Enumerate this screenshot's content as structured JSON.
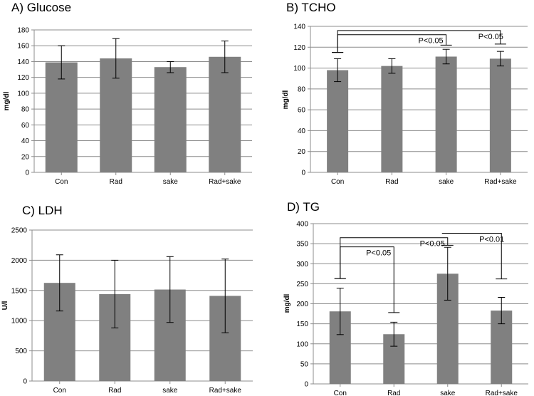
{
  "figure": "Four-panel bar chart figure",
  "chart_data": [
    {
      "type": "bar",
      "title": "A)  Glucose",
      "ylabel": "mg/dl",
      "categories": [
        "Con",
        "Rad",
        "sake",
        "Rad+sake"
      ],
      "values": [
        139,
        144,
        133,
        146
      ],
      "errors": [
        21,
        25,
        7,
        20
      ],
      "ylim": [
        0,
        180
      ],
      "yticks": [
        0,
        20,
        40,
        60,
        80,
        100,
        120,
        140,
        160,
        180
      ],
      "bar_color": "#808080",
      "grid": true,
      "annotations": []
    },
    {
      "type": "bar",
      "title": "B)   TCHO",
      "ylabel": "mg/dl",
      "categories": [
        "Con",
        "Rad",
        "sake",
        "Rad+sake"
      ],
      "values": [
        98,
        102,
        111,
        109
      ],
      "errors": [
        11,
        7,
        7,
        7
      ],
      "ylim": [
        0,
        140
      ],
      "yticks": [
        0,
        20,
        40,
        60,
        80,
        100,
        120,
        140
      ],
      "bar_color": "#808080",
      "grid": true,
      "annotations": [
        {
          "from": 0,
          "to": 2,
          "level": 132,
          "from_y": 115,
          "to_y": 122,
          "label": "P<0.05"
        },
        {
          "from": 0,
          "to": 3,
          "level": 136,
          "from_y": 115,
          "to_y": 123,
          "label": "P<0.05"
        }
      ]
    },
    {
      "type": "bar",
      "title": "C)  LDH",
      "ylabel": "U/l",
      "categories": [
        "Con",
        "Rad",
        "sake",
        "Rad+sake"
      ],
      "values": [
        1625,
        1440,
        1515,
        1410
      ],
      "errors": [
        465,
        560,
        545,
        610
      ],
      "ylim": [
        0,
        2500
      ],
      "yticks": [
        0,
        500,
        1000,
        1500,
        2000,
        2500
      ],
      "bar_color": "#808080",
      "grid": true,
      "annotations": []
    },
    {
      "type": "bar",
      "title": "D)   TG",
      "ylabel": "mg/dl",
      "categories": [
        "Con",
        "Rad",
        "sake",
        "Rad+sake"
      ],
      "values": [
        181,
        124,
        275,
        183
      ],
      "errors": [
        58,
        30,
        66,
        33
      ],
      "ylim": [
        0,
        400
      ],
      "yticks": [
        0,
        50,
        100,
        150,
        200,
        250,
        300,
        350,
        400
      ],
      "bar_color": "#808080",
      "grid": true,
      "annotations": [
        {
          "from": 0,
          "to": 1,
          "level": 342,
          "from_y": 263,
          "to_y": 178,
          "label": "P<0.05"
        },
        {
          "from": 0,
          "to": 2,
          "level": 365,
          "from_y": 263,
          "to_y": 346,
          "label": "P<0.05"
        },
        {
          "from": 2,
          "to": 3,
          "level": 376,
          "from_y": 376,
          "to_y": 262,
          "label": "P<0.01"
        }
      ]
    }
  ]
}
